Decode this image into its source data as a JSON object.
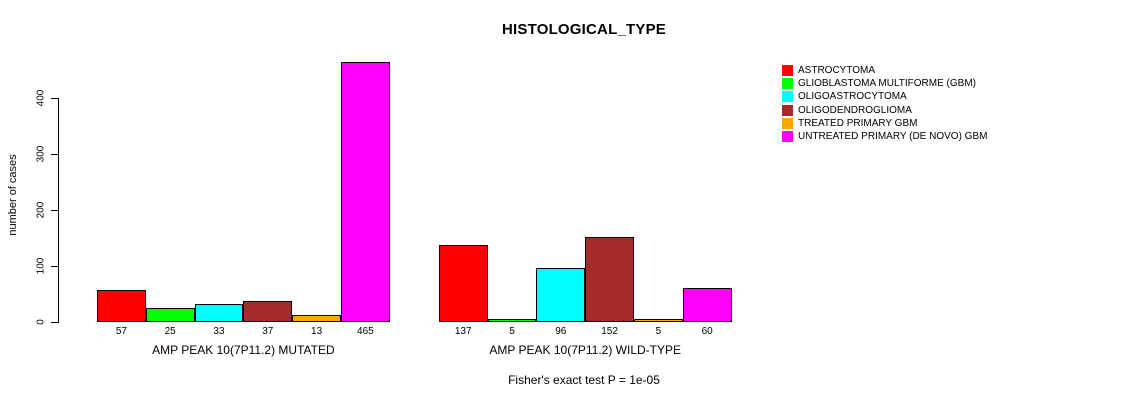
{
  "chart_data": {
    "type": "bar",
    "title": "HISTOLOGICAL_TYPE",
    "ylabel": "number of cases",
    "xlabel": "",
    "ylim": [
      0,
      465
    ],
    "yticks": [
      0,
      100,
      200,
      300,
      400
    ],
    "grid": false,
    "legend_position": "right",
    "bar_layout": "grouped",
    "categories": [
      "AMP PEAK 10(7P11.2) MUTATED",
      "AMP PEAK 10(7P11.2) WILD-TYPE"
    ],
    "series": [
      {
        "name": "ASTROCYTOMA",
        "color": "#FF0000",
        "values": [
          57,
          137
        ]
      },
      {
        "name": "GLIOBLASTOMA MULTIFORME (GBM)",
        "color": "#00FF00",
        "values": [
          25,
          5
        ]
      },
      {
        "name": "OLIGOASTROCYTOMA",
        "color": "#00FFFF",
        "values": [
          33,
          96
        ]
      },
      {
        "name": "OLIGODENDROGLIOMA",
        "color": "#A52A2A",
        "values": [
          37,
          152
        ]
      },
      {
        "name": "TREATED PRIMARY GBM",
        "color": "#FFA500",
        "values": [
          13,
          5
        ]
      },
      {
        "name": "UNTREATED PRIMARY (DE NOVO) GBM",
        "color": "#FF00FF",
        "values": [
          465,
          60
        ]
      }
    ],
    "annotation": "Fisher's exact test P = 1e-05"
  }
}
